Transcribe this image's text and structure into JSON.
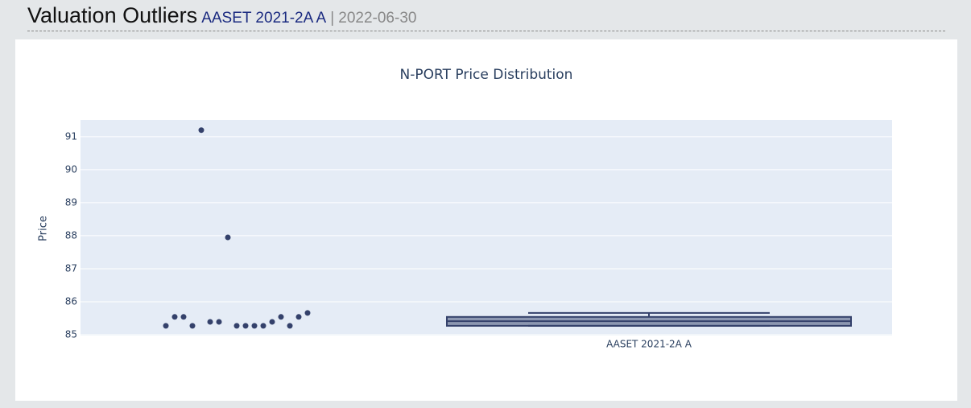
{
  "header": {
    "title": "Valuation Outliers",
    "security": "AASET 2021-2A A",
    "separator": "|",
    "date": "2022-06-30"
  },
  "chart_data": {
    "type": "box",
    "title": "N-PORT Price Distribution",
    "y_label": "Price",
    "categories": [
      "AASET 2021-2A A"
    ],
    "series": [
      {
        "color": "#34416b",
        "values": [
          85.27,
          85.27,
          85.39,
          85.27,
          85.39,
          85.54,
          85.54,
          91.2,
          87.95,
          85.27,
          85.54,
          85.66,
          85.54,
          85.39,
          85.27,
          85.27,
          85.27
        ],
        "lowerfence": 85.27,
        "q1": 85.27,
        "median": 85.41,
        "q3": 85.54,
        "upperfence": 85.66
      }
    ],
    "ylim": [
      84.95,
      91.51
    ],
    "yticks": [
      85,
      86,
      87,
      88,
      89,
      90,
      91
    ],
    "grid": true
  }
}
